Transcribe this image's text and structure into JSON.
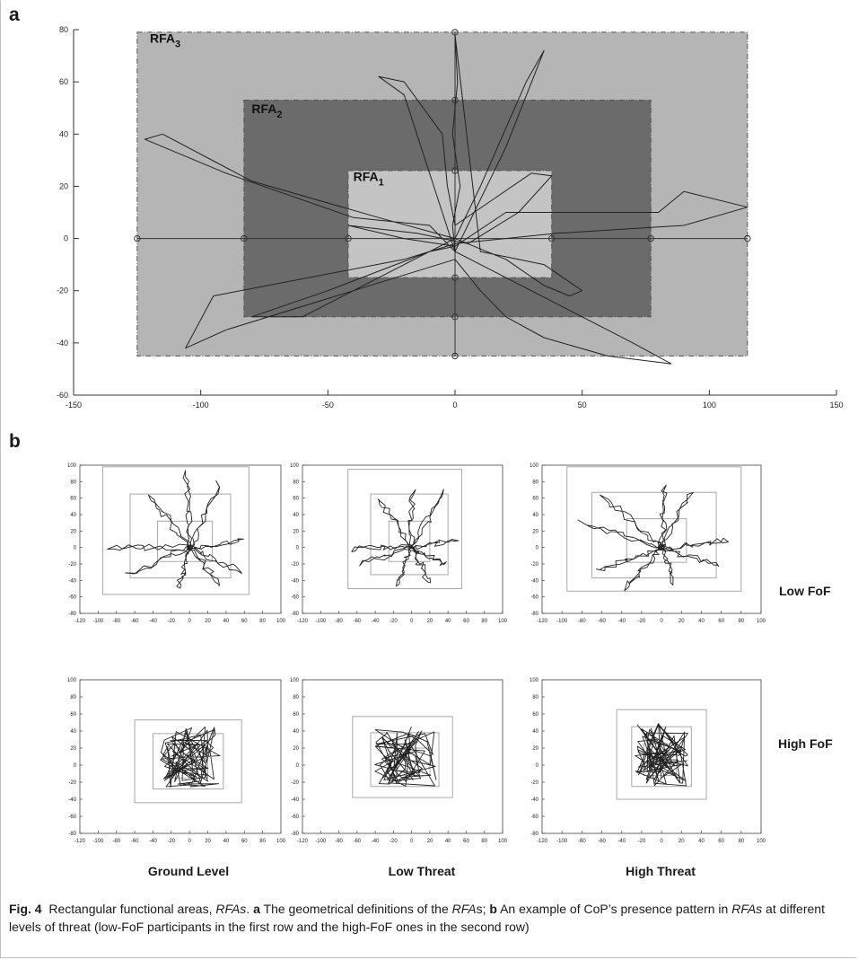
{
  "panel_a_letter": "a",
  "panel_b_letter": "b",
  "row_labels": [
    "Low FoF",
    "High FoF"
  ],
  "column_labels": [
    "Ground Level",
    "Low Threat",
    "High Threat"
  ],
  "caption": {
    "fig_number": "Fig. 4",
    "title_text": "Rectangular functional areas, ",
    "title_em": "RFAs",
    "sep1": ". ",
    "a_letter": "a",
    "a_text": " The geometrical definitions of the ",
    "a_em": "RFA",
    "a_s": "s; ",
    "b_letter": "b",
    "b_text": " An example of CoP’s presence pattern in ",
    "b_em": "RFAs",
    "b_rest": " at different levels of threat (low-FoF participants in the first row and the high-FoF ones in the second row)"
  },
  "colors": {
    "rfa3_fill": "#b5b5b5",
    "rfa2_fill": "#6b6b6b",
    "rfa1_fill": "#c4c4c4",
    "trajectory": "#222222",
    "small_rect": "#a8a8a8"
  },
  "chart_data": [
    {
      "type": "line",
      "panel": "a",
      "xlim": [
        -150,
        150
      ],
      "ylim": [
        -60,
        80
      ],
      "xticks": [
        -150,
        -100,
        -50,
        0,
        50,
        100,
        150
      ],
      "yticks": [
        -60,
        -40,
        -20,
        0,
        20,
        40,
        60,
        80
      ],
      "rects": [
        {
          "label": "RFA",
          "sub": "3",
          "x0": -125,
          "x1": 115,
          "y0": -45,
          "y1": 79
        },
        {
          "label": "RFA",
          "sub": "2",
          "x0": -83,
          "x1": 77,
          "y0": -30,
          "y1": 53
        },
        {
          "label": "RFA",
          "sub": "1",
          "x0": -42,
          "x1": 38,
          "y0": -15,
          "y1": 26
        }
      ],
      "marker_points": [
        [
          -125,
          0
        ],
        [
          -83,
          0
        ],
        [
          -42,
          0
        ],
        [
          38,
          0
        ],
        [
          77,
          0
        ],
        [
          115,
          0
        ],
        [
          0,
          79
        ],
        [
          0,
          53
        ],
        [
          0,
          26
        ],
        [
          0,
          -15
        ],
        [
          0,
          -30
        ],
        [
          0,
          -45
        ]
      ],
      "trajectory": [
        [
          0,
          -5
        ],
        [
          -10,
          5
        ],
        [
          -40,
          8
        ],
        [
          -90,
          25
        ],
        [
          -122,
          38
        ],
        [
          -115,
          40
        ],
        [
          -80,
          22
        ],
        [
          -30,
          8
        ],
        [
          0,
          0
        ],
        [
          20,
          -8
        ],
        [
          35,
          -18
        ],
        [
          45,
          -22
        ],
        [
          50,
          -20
        ],
        [
          35,
          -10
        ],
        [
          10,
          -5
        ],
        [
          0,
          78
        ],
        [
          1,
          60
        ],
        [
          -1,
          40
        ],
        [
          2,
          20
        ],
        [
          -1,
          5
        ],
        [
          0,
          -5
        ],
        [
          5,
          5
        ],
        [
          20,
          35
        ],
        [
          35,
          72
        ],
        [
          28,
          60
        ],
        [
          10,
          20
        ],
        [
          0,
          0
        ],
        [
          -10,
          -5
        ],
        [
          -60,
          -30
        ],
        [
          -80,
          -30
        ],
        [
          -50,
          -20
        ],
        [
          -10,
          -5
        ],
        [
          0,
          -3
        ],
        [
          20,
          10
        ],
        [
          80,
          10
        ],
        [
          90,
          18
        ],
        [
          115,
          12
        ],
        [
          90,
          5
        ],
        [
          40,
          2
        ],
        [
          0,
          -2
        ],
        [
          -20,
          -8
        ],
        [
          -95,
          -22
        ],
        [
          -106,
          -42
        ],
        [
          -90,
          -35
        ],
        [
          -40,
          -20
        ],
        [
          0,
          -8
        ],
        [
          10,
          -20
        ],
        [
          20,
          -30
        ],
        [
          35,
          -38
        ],
        [
          60,
          -45
        ],
        [
          85,
          -48
        ],
        [
          70,
          -40
        ],
        [
          30,
          -20
        ],
        [
          0,
          -5
        ],
        [
          -5,
          10
        ],
        [
          -20,
          55
        ],
        [
          -30,
          62
        ],
        [
          -20,
          60
        ],
        [
          -5,
          40
        ],
        [
          -3,
          20
        ],
        [
          0,
          5
        ],
        [
          15,
          15
        ],
        [
          30,
          25
        ],
        [
          38,
          24
        ],
        [
          25,
          10
        ],
        [
          5,
          -2
        ],
        [
          -15,
          2
        ],
        [
          -42,
          5
        ],
        [
          -20,
          0
        ],
        [
          0,
          -3
        ]
      ]
    },
    {
      "type": "line",
      "panel": "b",
      "subplots": 6,
      "xlim": [
        -120,
        100
      ],
      "ylim": [
        -80,
        100
      ],
      "xticks": [
        -120,
        -100,
        -80,
        -60,
        -40,
        -20,
        0,
        20,
        40,
        60,
        80,
        100
      ],
      "yticks": [
        -80,
        -60,
        -40,
        -20,
        0,
        20,
        40,
        60,
        80,
        100
      ]
    }
  ]
}
